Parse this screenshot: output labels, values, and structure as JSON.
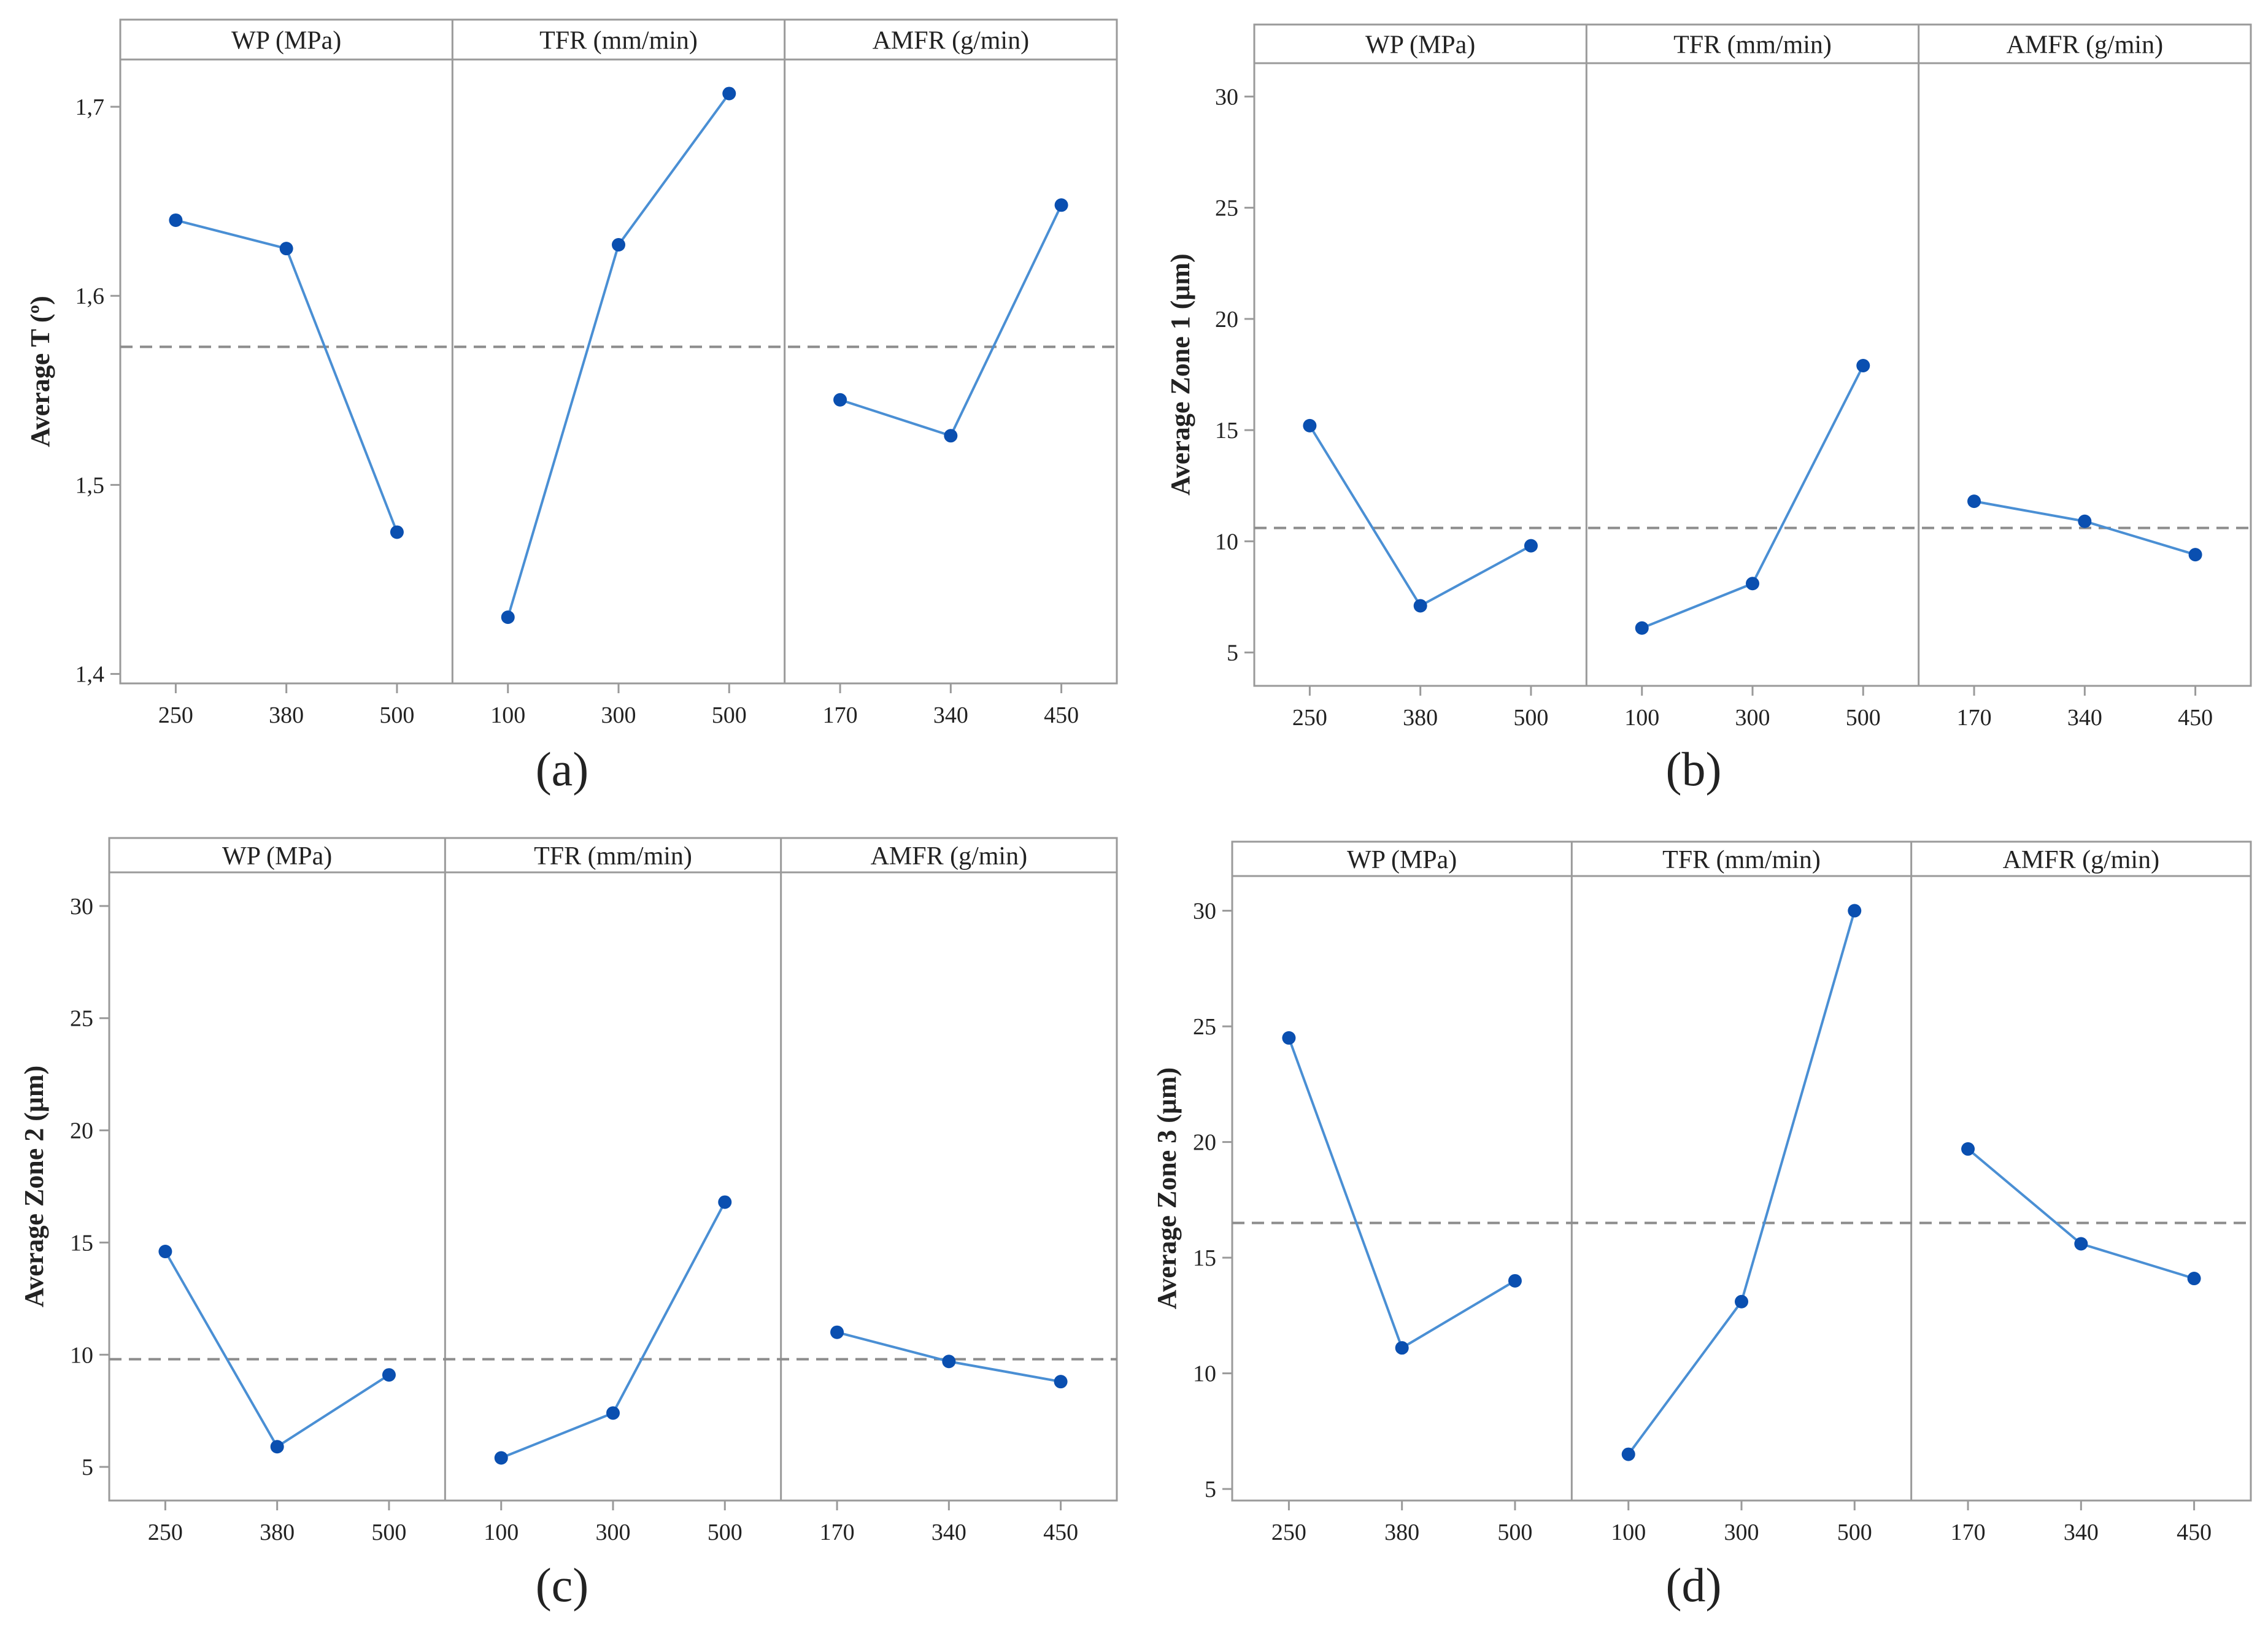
{
  "figure": {
    "panels": [
      "(a)",
      "(b)",
      "(c)",
      "(d)"
    ]
  },
  "chart_data": [
    {
      "type": "line",
      "panel_label": "(a)",
      "ylabel": "Average T (º)",
      "ylim": [
        1.395,
        1.725
      ],
      "yticks": [
        1.4,
        1.5,
        1.6,
        1.7
      ],
      "ytick_labels": [
        "1,4",
        "1,5",
        "1,6",
        "1,7"
      ],
      "grand_mean": 1.573,
      "factors": [
        {
          "name": "WP (MPa)",
          "levels": [
            "250",
            "380",
            "500"
          ],
          "values": [
            1.64,
            1.625,
            1.475
          ]
        },
        {
          "name": "TFR (mm/min)",
          "levels": [
            "100",
            "300",
            "500"
          ],
          "values": [
            1.43,
            1.627,
            1.707
          ]
        },
        {
          "name": "AMFR (g/min)",
          "levels": [
            "170",
            "340",
            "450"
          ],
          "values": [
            1.545,
            1.526,
            1.648
          ]
        }
      ]
    },
    {
      "type": "line",
      "panel_label": "(b)",
      "ylabel": "Average Zone 1 (μm)",
      "ylim": [
        3.5,
        31.5
      ],
      "yticks": [
        5,
        10,
        15,
        20,
        25,
        30
      ],
      "ytick_labels": [
        "5",
        "10",
        "15",
        "20",
        "25",
        "30"
      ],
      "grand_mean": 10.6,
      "factors": [
        {
          "name": "WP (MPa)",
          "levels": [
            "250",
            "380",
            "500"
          ],
          "values": [
            15.2,
            7.1,
            9.8
          ]
        },
        {
          "name": "TFR (mm/min)",
          "levels": [
            "100",
            "300",
            "500"
          ],
          "values": [
            6.1,
            8.1,
            17.9
          ]
        },
        {
          "name": "AMFR (g/min)",
          "levels": [
            "170",
            "340",
            "450"
          ],
          "values": [
            11.8,
            10.9,
            9.4
          ]
        }
      ]
    },
    {
      "type": "line",
      "panel_label": "(c)",
      "ylabel": "Average Zone 2 (μm)",
      "ylim": [
        3.5,
        31.5
      ],
      "yticks": [
        5,
        10,
        15,
        20,
        25,
        30
      ],
      "ytick_labels": [
        "5",
        "10",
        "15",
        "20",
        "25",
        "30"
      ],
      "grand_mean": 9.8,
      "factors": [
        {
          "name": "WP (MPa)",
          "levels": [
            "250",
            "380",
            "500"
          ],
          "values": [
            14.6,
            5.9,
            9.1
          ]
        },
        {
          "name": "TFR (mm/min)",
          "levels": [
            "100",
            "300",
            "500"
          ],
          "values": [
            5.4,
            7.4,
            16.8
          ]
        },
        {
          "name": "AMFR (g/min)",
          "levels": [
            "170",
            "340",
            "450"
          ],
          "values": [
            11.0,
            9.7,
            8.8
          ]
        }
      ]
    },
    {
      "type": "line",
      "panel_label": "(d)",
      "ylabel": "Average Zone 3 (μm)",
      "ylim": [
        4.5,
        31.5
      ],
      "yticks": [
        5,
        10,
        15,
        20,
        25,
        30
      ],
      "ytick_labels": [
        "5",
        "10",
        "15",
        "20",
        "25",
        "30"
      ],
      "grand_mean": 16.5,
      "factors": [
        {
          "name": "WP (MPa)",
          "levels": [
            "250",
            "380",
            "500"
          ],
          "values": [
            24.5,
            11.1,
            14.0
          ]
        },
        {
          "name": "TFR (mm/min)",
          "levels": [
            "100",
            "300",
            "500"
          ],
          "values": [
            6.5,
            13.1,
            30.0
          ]
        },
        {
          "name": "AMFR (g/min)",
          "levels": [
            "170",
            "340",
            "450"
          ],
          "values": [
            19.7,
            15.6,
            14.1
          ]
        }
      ]
    }
  ],
  "colors": {
    "line": "#4a8fd4",
    "marker": "#0a4fb0",
    "frame": "#9a9a9a",
    "mean_line": "#8c8c8c",
    "text": "#222222"
  }
}
